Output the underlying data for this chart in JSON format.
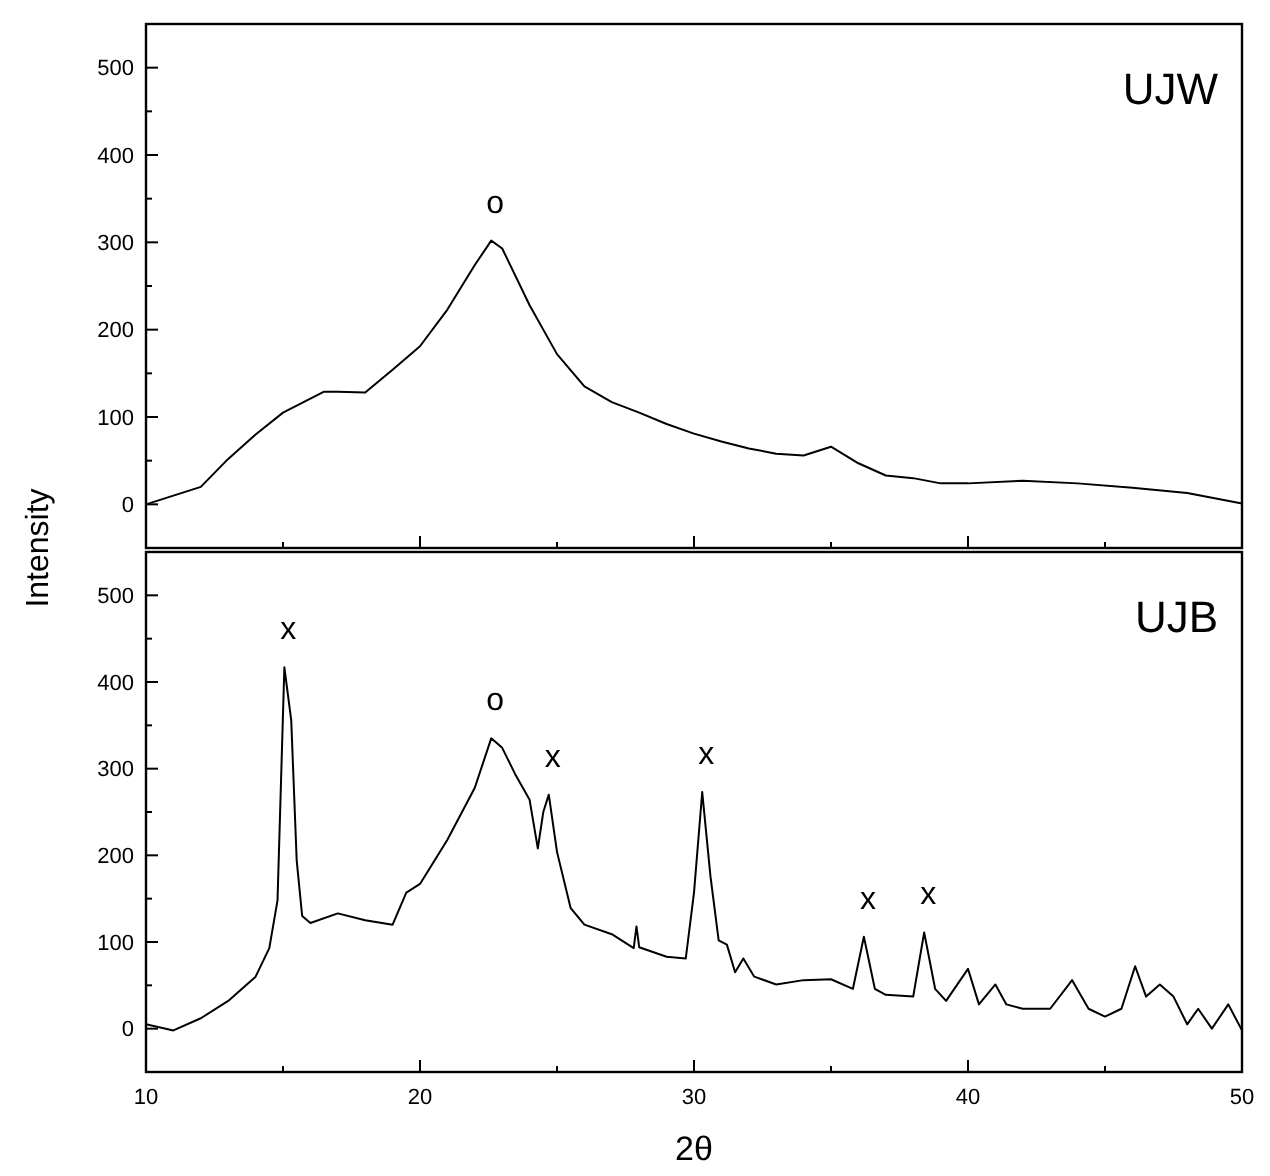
{
  "chart_data": [
    {
      "type": "line",
      "ylabel": "Intensity",
      "xlim": [
        10,
        50
      ],
      "ylim": [
        -50,
        550
      ],
      "tick_labels": "y",
      "grid": false,
      "xticks": [
        10,
        {
          "value": 15,
          "label": null
        },
        20,
        {
          "value": 25,
          "label": null
        },
        30,
        {
          "value": 35,
          "label": null
        },
        40,
        {
          "value": 45,
          "label": null
        },
        50
      ],
      "yticks": [
        0,
        {
          "value": 50,
          "label": null
        },
        100,
        {
          "value": 150,
          "label": null
        },
        200,
        {
          "value": 250,
          "label": null
        },
        300,
        {
          "value": 350,
          "label": null
        },
        400,
        {
          "value": 450,
          "label": null
        },
        500
      ],
      "annotations": [
        {
          "text": "o",
          "x": 22.6,
          "y": 302
        }
      ],
      "series": [
        {
          "name": "UJW",
          "color": "#000000",
          "x": [
            10,
            11,
            12,
            13,
            14,
            15,
            16,
            16.5,
            17,
            18,
            19,
            20,
            21,
            22,
            22.6,
            23,
            24,
            25,
            26,
            27,
            28,
            29,
            30,
            31,
            32,
            33,
            34,
            35,
            36,
            37,
            38,
            39,
            40,
            42,
            44,
            46,
            48,
            50
          ],
          "values": [
            0,
            10,
            20,
            52,
            80,
            105,
            121,
            129,
            129,
            128,
            154,
            181,
            223,
            274,
            302,
            293,
            228,
            172,
            135,
            117,
            105,
            92,
            81,
            72,
            64,
            58,
            56,
            66,
            47,
            33,
            30,
            24,
            24,
            27,
            24,
            19,
            13,
            1
          ]
        }
      ]
    },
    {
      "type": "line",
      "xlabel": "2θ",
      "xlim": [
        10,
        50
      ],
      "ylim": [
        -50,
        550
      ],
      "grid": false,
      "xticks": [
        10,
        {
          "value": 15,
          "label": null
        },
        20,
        {
          "value": 25,
          "label": null
        },
        30,
        {
          "value": 35,
          "label": null
        },
        40,
        {
          "value": 45,
          "label": null
        },
        50
      ],
      "yticks": [
        0,
        {
          "value": 50,
          "label": null
        },
        100,
        {
          "value": 150,
          "label": null
        },
        200,
        {
          "value": 250,
          "label": null
        },
        300,
        {
          "value": 350,
          "label": null
        },
        400,
        {
          "value": 450,
          "label": null
        },
        500
      ],
      "annotations": [
        {
          "text": "x",
          "x": 15.05,
          "y": 417
        },
        {
          "text": "o",
          "x": 22.6,
          "y": 335
        },
        {
          "text": "x",
          "x": 24.7,
          "y": 270
        },
        {
          "text": "x",
          "x": 30.3,
          "y": 273
        },
        {
          "text": "x",
          "x": 36.2,
          "y": 106
        },
        {
          "text": "x",
          "x": 38.4,
          "y": 111
        }
      ],
      "series": [
        {
          "name": "UJB",
          "color": "#000000",
          "x": [
            10,
            11,
            12,
            13,
            14,
            14.5,
            14.8,
            15.05,
            15.3,
            15.5,
            15.7,
            16,
            17,
            18,
            19,
            19.5,
            20,
            21,
            22,
            22.6,
            23,
            23.5,
            24,
            24.3,
            24.5,
            24.7,
            25,
            25.5,
            26,
            27,
            27.8,
            27.9,
            28,
            29,
            29.7,
            30,
            30.3,
            30.6,
            30.9,
            31.2,
            31.5,
            31.8,
            32.2,
            33,
            34,
            35,
            35.8,
            36.2,
            36.6,
            37,
            38,
            38.4,
            38.8,
            39.2,
            40,
            40.4,
            41,
            41.4,
            42,
            43,
            43.8,
            44.4,
            45,
            45.6,
            46.1,
            46.5,
            47,
            47.5,
            48,
            48.4,
            48.9,
            49.5,
            50
          ],
          "values": [
            5,
            -2,
            12,
            32,
            60,
            93,
            148,
            417,
            356,
            194,
            130,
            122,
            133,
            125,
            120,
            157,
            167,
            218,
            278,
            335,
            324,
            292,
            264,
            208,
            250,
            270,
            204,
            139,
            120,
            109,
            93,
            118,
            94,
            83,
            81,
            157,
            273,
            176,
            102,
            97,
            65,
            81,
            60,
            51,
            56,
            57,
            46,
            106,
            46,
            39,
            37,
            111,
            46,
            32,
            69,
            28,
            51,
            28,
            23,
            23,
            56,
            23,
            14,
            23,
            72,
            37,
            51,
            37,
            5,
            23,
            0,
            28,
            -2
          ]
        }
      ]
    }
  ]
}
